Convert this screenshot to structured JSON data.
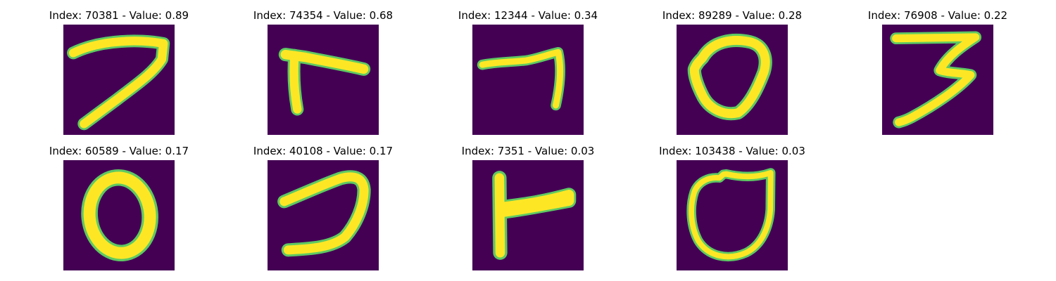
{
  "colors": {
    "background": "#440154",
    "ink": "#fde725",
    "edge_light": "#5ec962",
    "edge_dark": "#21918c"
  },
  "panels": [
    {
      "title": "Index: 70381 - Value: 0.89",
      "index": 70381,
      "value": 0.89
    },
    {
      "title": "Index: 74354 - Value: 0.68",
      "index": 74354,
      "value": 0.68
    },
    {
      "title": "Index: 12344 - Value: 0.34",
      "index": 12344,
      "value": 0.34
    },
    {
      "title": "Index: 89289 - Value: 0.28",
      "index": 89289,
      "value": 0.28
    },
    {
      "title": "Index: 76908 - Value: 0.22",
      "index": 76908,
      "value": 0.22
    },
    {
      "title": "Index: 60589 - Value: 0.17",
      "index": 60589,
      "value": 0.17
    },
    {
      "title": "Index: 40108 - Value: 0.17",
      "index": 40108,
      "value": 0.17
    },
    {
      "title": "Index: 7351 - Value: 0.03",
      "index": 7351,
      "value": 0.03
    },
    {
      "title": "Index: 103438 - Value: 0.03",
      "index": 103438,
      "value": 0.03
    }
  ]
}
